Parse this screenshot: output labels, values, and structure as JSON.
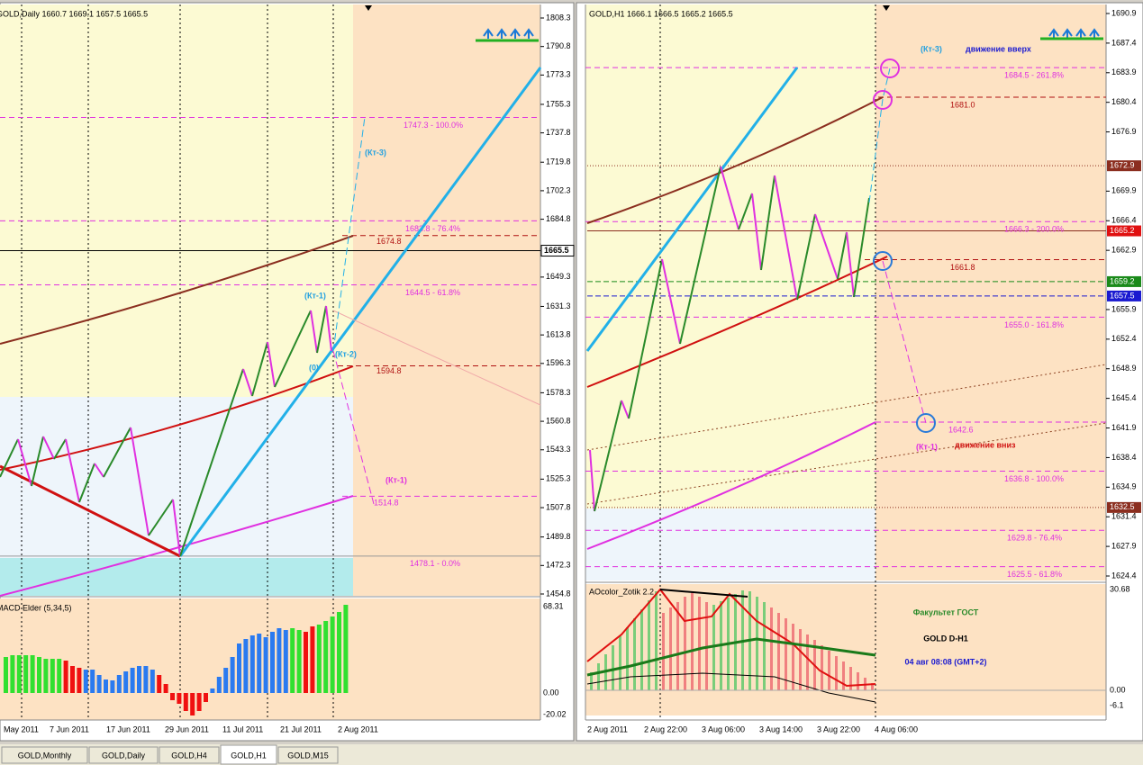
{
  "left": {
    "header": "GOLD,Daily 1660.7 1669.1 1657.5 1665.5",
    "yticks": [
      "1808.3",
      "1790.8",
      "1773.3",
      "1755.3",
      "1737.8",
      "1719.8",
      "1702.3",
      "1684.8",
      "1649.3",
      "1631.3",
      "1613.8",
      "1596.3",
      "1578.3",
      "1560.8",
      "1543.3",
      "1525.3",
      "1507.8",
      "1489.8",
      "1472.3",
      "1454.8"
    ],
    "price_tag": "1665.5",
    "levels": [
      "1747.3 - 100.0%",
      "1683.8 - 76.4%",
      "1674.8",
      "1644.5 - 61.8%",
      "1594.8",
      "1514.8",
      "1478.1 - 0.0%"
    ],
    "annotations": [
      "(Кт-3)",
      "(Кт-1)",
      "(Кт-2)",
      "(0)",
      "(Кт-1)"
    ],
    "indicator": {
      "title": "MACD Elder (5,34,5)",
      "yticks": [
        "68.31",
        "0.00",
        "-20.02"
      ]
    },
    "xticks": [
      "May 2011",
      "7 Jun 2011",
      "17 Jun 2011",
      "29 Jun 2011",
      "11 Jul 2011",
      "21 Jul 2011",
      "2 Aug 2011"
    ]
  },
  "right": {
    "header": "GOLD,H1 1666.1 1666.5 1665.2 1665.5",
    "yticks": [
      "1690.9",
      "1687.4",
      "1683.9",
      "1680.4",
      "1676.9",
      "1669.9",
      "1666.4",
      "1662.9",
      "1655.9",
      "1652.4",
      "1648.9",
      "1645.4",
      "1641.9",
      "1638.4",
      "1634.9",
      "1631.4",
      "1627.9",
      "1624.4"
    ],
    "price_tags": [
      {
        "label": "1672.9",
        "color": "#8b2e1f"
      },
      {
        "label": "1665.2",
        "color": "#e01010"
      },
      {
        "label": "1659.2",
        "color": "#1a8a1a"
      },
      {
        "label": "1657.5",
        "color": "#1a1ad0"
      },
      {
        "label": "1632.5",
        "color": "#8b2e1f"
      }
    ],
    "levels": [
      "1684.5 - 261.8%",
      "1681.0",
      "1666.3 - 200.0%",
      "1661.8",
      "1655.0 - 161.8%",
      "1642.6",
      "1636.8 - 100.0%",
      "1629.8 - 76.4%",
      "1625.5 - 61.8%"
    ],
    "annotations": [
      "(Кт-3)",
      "движение вверх",
      "(Кт-1)",
      "движение вниз"
    ],
    "indicator": {
      "title": "AOcolor_Zotik 2.2",
      "yticks": [
        "30.68",
        "0.00",
        "-6.1"
      ]
    },
    "notes": [
      "Факультет ГОСТ",
      "GOLD   D-H1",
      "04 авг 08:08 (GMT+2)"
    ],
    "xticks": [
      "2 Aug 2011",
      "2 Aug 22:00",
      "3 Aug 06:00",
      "3 Aug 14:00",
      "3 Aug 22:00",
      "4 Aug 06:00"
    ]
  },
  "tabs": [
    "GOLD,Monthly",
    "GOLD,Daily",
    "GOLD,H4",
    "GOLD,H1",
    "GOLD,M15"
  ]
}
